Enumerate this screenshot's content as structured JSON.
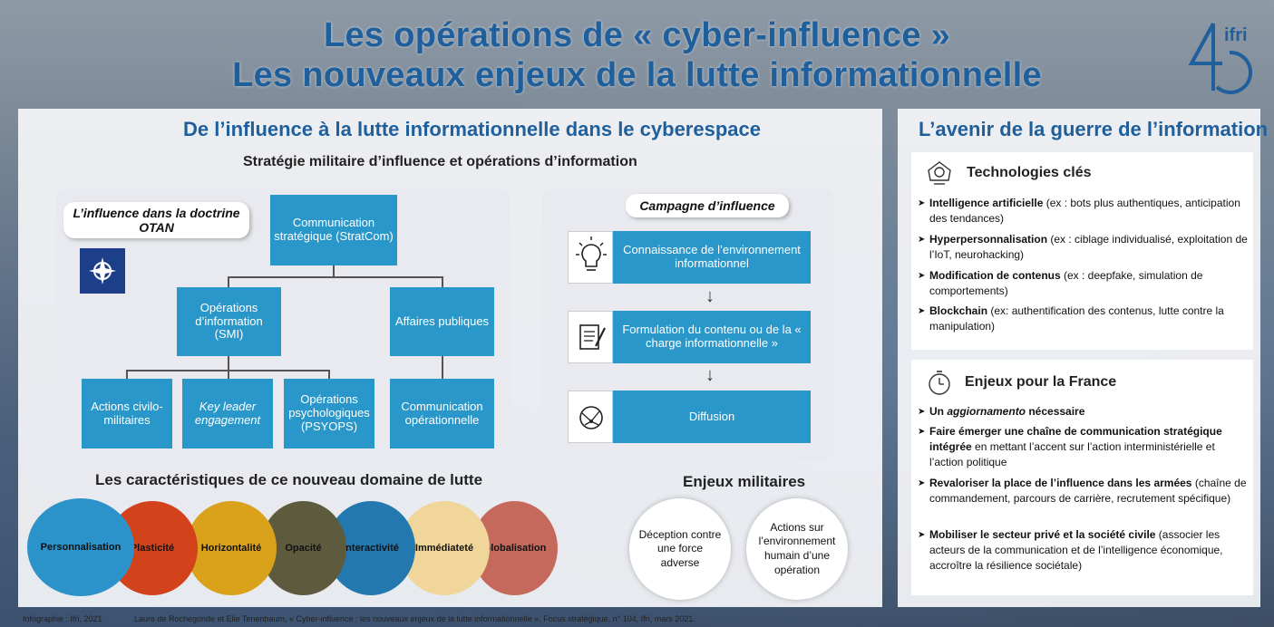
{
  "header": {
    "title_line1": "Les opérations de « cyber-influence »",
    "title_line2": "Les nouveaux enjeux de la lutte informationnelle",
    "logo_text": "ifri"
  },
  "left": {
    "title": "De l’influence à la lutte informationnelle dans le cyberespace",
    "subtitle": "Stratégie militaire d’influence et opérations d’information",
    "nato_label": "L’influence dans la doctrine OTAN",
    "org": {
      "stratcom": "Communication stratégique (StratCom)",
      "smi": "Opérations d’information (SMI)",
      "affaires": "Affaires publiques",
      "civ_mil": "Actions civilo-militaires",
      "key_leader": "Key leader engagement",
      "psyops": "Opérations psychologiques (PSYOPS)",
      "comm_op": "Communication opérationnelle"
    },
    "campaign": {
      "label": "Campagne d’influence",
      "steps": [
        "Connaissance de l’environnement informationnel",
        "Formulation du contenu ou de la « charge informationnelle »",
        "Diffusion"
      ]
    },
    "characteristics_title": "Les caractéristiques de ce nouveau domaine de lutte",
    "characteristics": [
      {
        "label": "Personnalisation",
        "color": "#2b93c9"
      },
      {
        "label": "Plasticité",
        "color": "#d2431c"
      },
      {
        "label": "Horizontalité",
        "color": "#d9a21a"
      },
      {
        "label": "Opacité",
        "color": "#5e5a3e"
      },
      {
        "label": "Interactivité",
        "color": "#2378b0"
      },
      {
        "label": "Immédiateté",
        "color": "#f0d69a"
      },
      {
        "label": "Globalisation",
        "color": "#c4695c"
      }
    ],
    "military_title": "Enjeux militaires",
    "military": [
      "Déception contre une force adverse",
      "Actions sur l’environnement humain d’une opération"
    ]
  },
  "right": {
    "title": "L’avenir de la guerre de l’information",
    "tech_title": "Technologies clés",
    "tech": [
      {
        "bold": "Intelligence artificielle",
        "rest": " (ex : bots plus authentiques, anticipation des tendances)"
      },
      {
        "bold": "Hyperpersonnalisation",
        "rest": " (ex : ciblage individualisé, exploitation de l’IoT, neurohacking)"
      },
      {
        "bold": "Modification de contenus",
        "rest": " (ex : deepfake, simulation de comportements)"
      },
      {
        "bold": "Blockchain",
        "rest": " (ex: authentification des contenus, lutte contre la manipulation)"
      }
    ],
    "france_title": "Enjeux pour la France",
    "france": [
      {
        "bold1": "Un ",
        "italic": "aggiornamento",
        "bold2": " nécessaire",
        "rest": ""
      },
      {
        "bold1": "Faire émerger une chaîne de communication stratégique intégrée",
        "italic": "",
        "bold2": "",
        "rest": " en mettant l’accent sur l’action interministérielle et l’action politique"
      },
      {
        "bold1": "Revaloriser la place de l’influence dans les armées",
        "italic": "",
        "bold2": "",
        "rest": " (chaîne de commandement, parcours de carrière, recrutement spécifique)"
      },
      {
        "bold1": "Mobiliser le secteur privé et la société civile",
        "italic": "",
        "bold2": "",
        "rest": " (associer les acteurs de la communication et de l’intelligence économique, accroître la résilience sociétale)"
      }
    ]
  },
  "footer": {
    "credit": "Infographie : Ifri, 2021",
    "source": "Laure de Rochegonde et Elie Tenenbaum, « Cyber-influence : les nouveaux enjeux de la lutte informationnelle », Focus stratégique, n° 104, Ifri, mars 2021."
  }
}
